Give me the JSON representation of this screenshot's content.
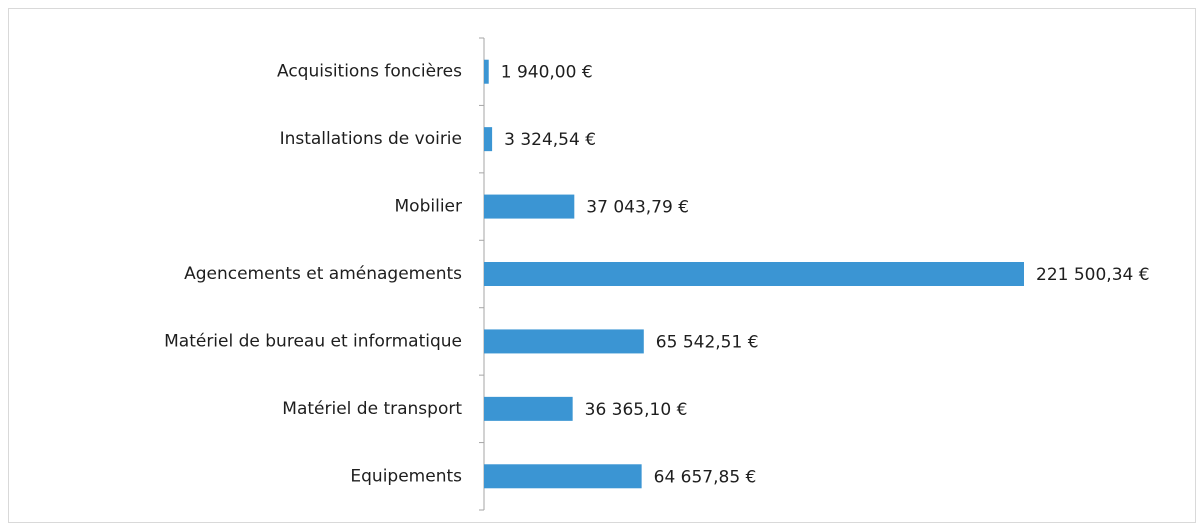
{
  "chart_data": {
    "type": "bar",
    "orientation": "horizontal",
    "categories": [
      "Acquisitions foncières",
      "Installations de voirie",
      "Mobilier",
      "Agencements et aménagements",
      "Matériel de bureau et informatique",
      "Matériel de transport",
      "Equipements"
    ],
    "values": [
      1940.0,
      3324.54,
      37043.79,
      221500.34,
      65542.51,
      36365.1,
      64657.85
    ],
    "value_labels": [
      "1 940,00 €",
      "3 324,54 €",
      "37 043,79 €",
      "221 500,34 €",
      "65 542,51 €",
      "36 365,10 €",
      "64 657,85 €"
    ],
    "color": "#3b95d3"
  }
}
